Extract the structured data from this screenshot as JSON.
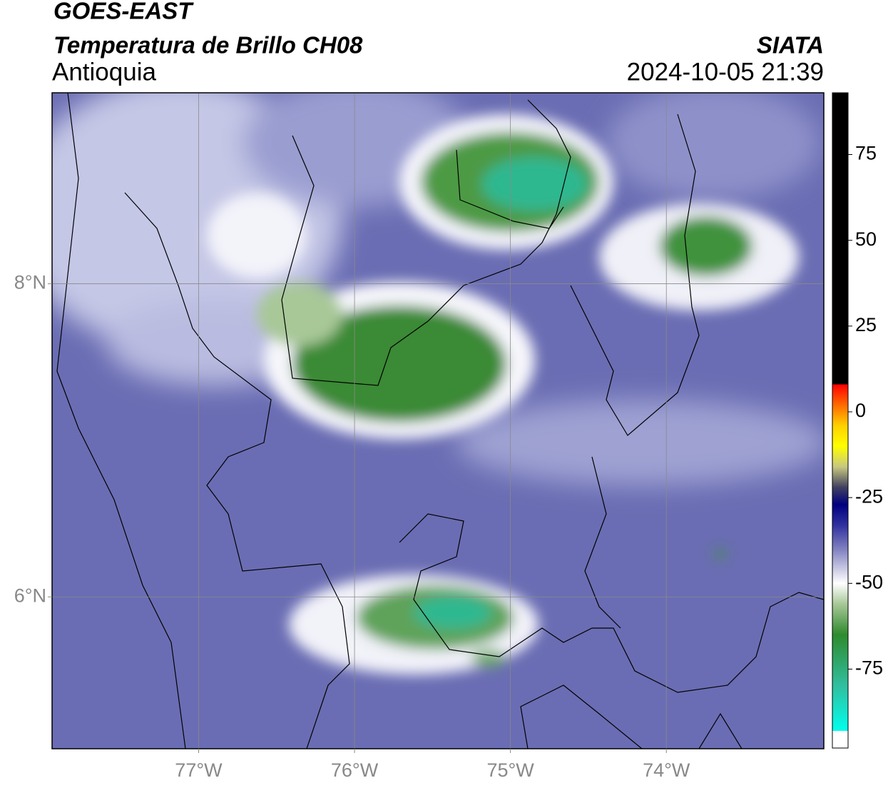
{
  "header": {
    "satellite": "GOES-EAST",
    "product": "Temperatura de Brillo CH08",
    "region": "Antioquia",
    "source": "SIATA",
    "datetime": "2024-10-05 21:39"
  },
  "map": {
    "lonlim": [
      -77.94,
      -72.99
    ],
    "latlim": [
      5.03,
      9.22
    ],
    "lon_ticks": [
      {
        "value": -77,
        "label": "77°W"
      },
      {
        "value": -76,
        "label": "76°W"
      },
      {
        "value": -75,
        "label": "75°W"
      },
      {
        "value": -74,
        "label": "74°W"
      }
    ],
    "lat_ticks": [
      {
        "value": 8,
        "label": "8°N"
      },
      {
        "value": 6,
        "label": "6°N"
      }
    ],
    "grid": true,
    "grid_color": "#8a8a8a"
  },
  "colorbar": {
    "range": [
      -98,
      93
    ],
    "ticks": [
      75,
      50,
      25,
      0,
      -25,
      -50,
      -75
    ],
    "stops": [
      {
        "value": 93,
        "color": "#000000"
      },
      {
        "value": 8,
        "color": "#000000"
      },
      {
        "value": 8,
        "color": "#ff0000"
      },
      {
        "value": 2,
        "color": "#ff6a00"
      },
      {
        "value": -4,
        "color": "#ffd000"
      },
      {
        "value": -10,
        "color": "#ffff00"
      },
      {
        "value": -16,
        "color": "#c8c880"
      },
      {
        "value": -22,
        "color": "#404060"
      },
      {
        "value": -27,
        "color": "#000080"
      },
      {
        "value": -33,
        "color": "#3030a0"
      },
      {
        "value": -40,
        "color": "#8080c0"
      },
      {
        "value": -50,
        "color": "#ffffff"
      },
      {
        "value": -56,
        "color": "#a8c898"
      },
      {
        "value": -65,
        "color": "#2e8b2e"
      },
      {
        "value": -80,
        "color": "#30c0a0"
      },
      {
        "value": -93,
        "color": "#00ffee"
      },
      {
        "value": -93,
        "color": "#ffffff"
      },
      {
        "value": -98,
        "color": "#ffffff"
      }
    ]
  }
}
